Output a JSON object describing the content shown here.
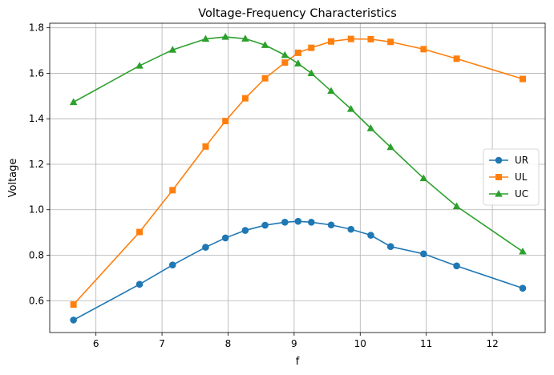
{
  "chart_data": {
    "type": "line",
    "title": "Voltage-Frequency Characteristics",
    "xlabel": "f",
    "ylabel": "Voltage",
    "xlim": [
      5.3,
      12.8
    ],
    "ylim": [
      0.46,
      1.82
    ],
    "xticks": [
      6,
      7,
      8,
      9,
      10,
      11,
      12
    ],
    "yticks": [
      0.6,
      0.8,
      1.0,
      1.2,
      1.4,
      1.6,
      1.8
    ],
    "xtick_labels": [
      "6",
      "7",
      "8",
      "9",
      "10",
      "11",
      "12"
    ],
    "ytick_labels": [
      "0.6",
      "0.8",
      "1.0",
      "1.2",
      "1.4",
      "1.6",
      "1.8"
    ],
    "grid": true,
    "legend_position": "center-right",
    "x": [
      5.66,
      6.66,
      7.16,
      7.66,
      7.96,
      8.26,
      8.56,
      8.86,
      9.06,
      9.26,
      9.56,
      9.86,
      10.16,
      10.46,
      10.96,
      11.46,
      12.46
    ],
    "series": [
      {
        "name": "UR",
        "color": "#1f77b4",
        "marker": "circle",
        "values": [
          0.515,
          0.672,
          0.757,
          0.835,
          0.876,
          0.909,
          0.932,
          0.945,
          0.949,
          0.945,
          0.933,
          0.914,
          0.888,
          0.838,
          0.806,
          0.753,
          0.655
        ]
      },
      {
        "name": "UL",
        "color": "#ff7f0e",
        "marker": "square",
        "values": [
          0.583,
          0.902,
          1.086,
          1.278,
          1.39,
          1.49,
          1.578,
          1.647,
          1.69,
          1.712,
          1.74,
          1.751,
          1.75,
          1.738,
          1.706,
          1.664,
          1.575
        ]
      },
      {
        "name": "UC",
        "color": "#2ca02c",
        "marker": "triangle",
        "values": [
          1.473,
          1.633,
          1.703,
          1.751,
          1.76,
          1.752,
          1.724,
          1.68,
          1.643,
          1.6,
          1.522,
          1.443,
          1.358,
          1.275,
          1.138,
          1.015,
          0.816
        ]
      }
    ]
  }
}
